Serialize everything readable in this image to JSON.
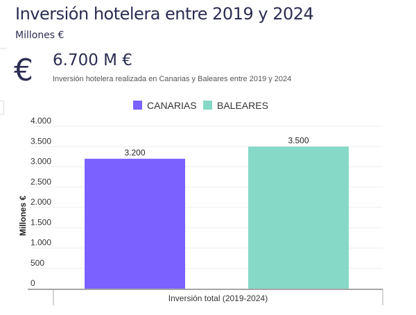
{
  "header": {
    "title": "Inversión hotelera entre 2019 y 2024",
    "unit": "Millones €"
  },
  "kpi": {
    "icon": "euro-icon",
    "symbol": "€",
    "value": "6.700 M €",
    "description": "Inversión hotelera realizada en Canarias y Baleares entre 2019 y 2024"
  },
  "chart_data": {
    "type": "bar",
    "categories": [
      "Inversión total (2019-2024)"
    ],
    "series": [
      {
        "name": "CANARIAS",
        "values": [
          3200
        ],
        "label": "3.200",
        "color": "#7b61ff"
      },
      {
        "name": "BALEARES",
        "values": [
          3500
        ],
        "label": "3.500",
        "color": "#86d9c6"
      }
    ],
    "ylabel": "Millones €",
    "ylim": [
      0,
      4000
    ],
    "yticks": [
      0,
      500,
      1000,
      1500,
      2000,
      2500,
      3000,
      3500,
      4000
    ],
    "ytick_labels": [
      "0",
      "500",
      "1.000",
      "1.500",
      "2.000",
      "2.500",
      "3.000",
      "3.500",
      "4.000"
    ],
    "legend": "top",
    "grid": true
  }
}
